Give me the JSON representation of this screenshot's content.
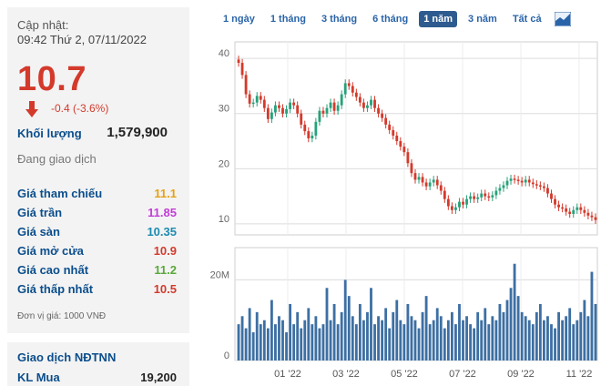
{
  "quote": {
    "update_label": "Cập nhật:",
    "update_time": "09:42 Thứ 2, 07/11/2022",
    "price": "10.7",
    "change": "-0.4 (-3.6%)",
    "volume_label": "Khối lượng",
    "volume_value": "1,579,900",
    "status": "Đang giao dịch"
  },
  "prices": [
    {
      "label": "Giá tham chiếu",
      "value": "11.1",
      "color": "#e8a013"
    },
    {
      "label": "Giá trần",
      "value": "11.85",
      "color": "#c23cd8"
    },
    {
      "label": "Giá sàn",
      "value": "10.35",
      "color": "#1d8bb0"
    },
    {
      "label": "Giá mở cửa",
      "value": "10.9",
      "color": "#d33a2c"
    },
    {
      "label": "Giá cao nhất",
      "value": "11.2",
      "color": "#5aa83a"
    },
    {
      "label": "Giá thấp nhất",
      "value": "10.5",
      "color": "#d33a2c"
    }
  ],
  "price_unit_note": "Đơn vị giá: 1000 VNĐ",
  "foreign": {
    "title": "Giao dịch NĐTNN",
    "buy_label": "KL Mua",
    "buy_value": "19,200"
  },
  "tabs": [
    "1 ngày",
    "1 tháng",
    "3 tháng",
    "6 tháng",
    "1 năm",
    "3 năm",
    "Tất cả"
  ],
  "active_tab": "1 năm",
  "colors": {
    "up": "#27a17a",
    "down": "#d33a2c",
    "volume": "#3d6fa3",
    "accent": "#2e5b8f"
  },
  "chart_data": {
    "type": "candlestick",
    "price_axis_ticks": [
      "40",
      "30",
      "20",
      "10"
    ],
    "price_ylim": [
      8,
      43
    ],
    "volume_axis_ticks": [
      "20M",
      "0"
    ],
    "volume_ylim": [
      0,
      28
    ],
    "x_tick_labels": [
      "01 '22",
      "03 '22",
      "05 '22",
      "07 '22",
      "09 '22",
      "11 '22"
    ],
    "close_series": [
      39.2,
      37,
      33.5,
      31.8,
      32,
      33.2,
      32.5,
      31,
      29,
      30.2,
      31.5,
      31,
      30,
      30.8,
      32,
      31.5,
      30,
      28,
      26.8,
      25.5,
      26,
      28.5,
      30.5,
      30,
      31,
      32,
      30.5,
      31.5,
      33.5,
      35.5,
      35,
      33.8,
      33,
      32,
      31,
      31.5,
      32.5,
      31,
      30,
      29.2,
      28,
      27,
      26,
      25,
      24,
      23,
      21,
      19.2,
      18,
      18.5,
      17.5,
      16.8,
      17.5,
      18,
      17,
      16,
      14.5,
      13.2,
      12.5,
      13,
      14,
      13.5,
      14.5,
      15,
      14.5,
      14.8,
      15.5,
      15,
      14.8,
      15.2,
      16,
      16.5,
      17,
      17.8,
      18.2,
      18,
      17.8,
      17.5,
      18,
      17.5,
      17.2,
      17,
      16.8,
      16.5,
      15.5,
      14.5,
      13.5,
      13,
      12.8,
      12.2,
      11.8,
      12.5,
      13,
      12.5,
      12,
      11.5,
      11.2,
      10.7
    ],
    "volume_series": [
      9,
      11,
      8,
      13,
      7,
      12,
      9,
      10,
      8,
      15,
      9,
      11,
      10,
      7,
      14,
      9,
      12,
      8,
      10,
      13,
      9,
      11,
      8,
      9,
      18,
      10,
      14,
      9,
      12,
      20,
      16,
      11,
      9,
      14,
      10,
      12,
      18,
      9,
      11,
      10,
      13,
      8,
      12,
      15,
      10,
      9,
      14,
      11,
      10,
      8,
      12,
      16,
      9,
      10,
      13,
      11,
      8,
      10,
      12,
      9,
      14,
      10,
      11,
      9,
      8,
      12,
      10,
      13,
      9,
      11,
      10,
      14,
      12,
      15,
      18,
      24,
      16,
      12,
      11,
      10,
      9,
      12,
      14,
      10,
      11,
      9,
      8,
      12,
      10,
      11,
      13,
      9,
      10,
      12,
      15,
      11,
      22,
      14
    ]
  }
}
